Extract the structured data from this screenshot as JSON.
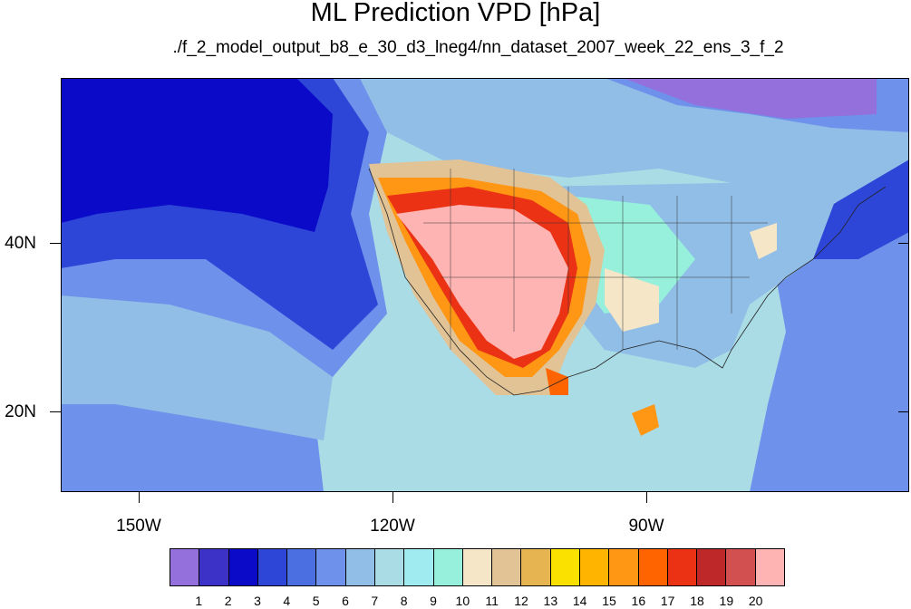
{
  "title": "ML Prediction VPD [hPa]",
  "subtitle": "./f_2_model_output_b8_e_30_d3_lneg4/nn_dataset_2007_week_22_ens_3_f_2",
  "axes": {
    "lon_labels": [
      "150W",
      "120W",
      "90W"
    ],
    "lat_labels": [
      "40N",
      "20N"
    ]
  },
  "colorbar": {
    "labels": [
      "1",
      "2",
      "3",
      "4",
      "5",
      "6",
      "7",
      "8",
      "9",
      "10",
      "11",
      "12",
      "13",
      "14",
      "15",
      "16",
      "17",
      "18",
      "19",
      "20"
    ],
    "colors": [
      "#9370db",
      "#3c32c8",
      "#0a0ac8",
      "#2d46d7",
      "#4b6ee1",
      "#6e91eb",
      "#91bee6",
      "#aadce6",
      "#a0ebf0",
      "#96f0dc",
      "#f5e6c8",
      "#e1c396",
      "#e6b450",
      "#fae100",
      "#ffb400",
      "#ff9614",
      "#ff6400",
      "#eb3214",
      "#be2828",
      "#d25050",
      "#ffb4b4"
    ]
  }
}
